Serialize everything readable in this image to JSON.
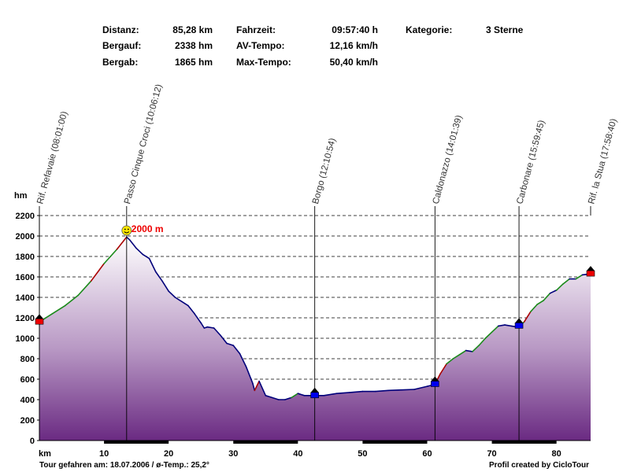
{
  "stats": [
    {
      "label": "Distanz:",
      "value": "85,28 km"
    },
    {
      "label": "Bergauf:",
      "value": "2338 hm"
    },
    {
      "label": "Bergab:",
      "value": "1865 hm"
    },
    {
      "label": "Fahrzeit:",
      "value": "09:57:40 h"
    },
    {
      "label": "AV-Tempo:",
      "value": "12,16 km/h"
    },
    {
      "label": "Max-Tempo:",
      "value": "50,40 km/h"
    },
    {
      "label": "Kategorie:",
      "value": "3 Sterne"
    }
  ],
  "footer": {
    "left": "Tour gefahren am: 18.07.2006  /  ø-Temp.: 25,2°",
    "right": "Profil created by CicloTour"
  },
  "chart_data": {
    "type": "area",
    "xlabel": "km",
    "ylabel": "hm",
    "xlim": [
      0,
      85.28
    ],
    "ylim": [
      0,
      2200
    ],
    "x_ticks": [
      10,
      20,
      30,
      40,
      50,
      60,
      70,
      80
    ],
    "y_ticks": [
      0,
      200,
      400,
      600,
      800,
      1000,
      1200,
      1400,
      1600,
      1800,
      2000,
      2200
    ],
    "grid": true,
    "max_annotation": {
      "x": 13.5,
      "y": 2000,
      "text": "2000 m"
    },
    "waypoints": [
      {
        "x": 0,
        "label": "Rif. Refavaie (08:01:00)"
      },
      {
        "x": 13.5,
        "label": "Passo Cinque Croci (10:06:12)"
      },
      {
        "x": 42.6,
        "label": "Borgo (12:10:54)"
      },
      {
        "x": 61.2,
        "label": "Caldonazzo (14:01:39)"
      },
      {
        "x": 74.2,
        "label": "Carbonare (15:59:45)"
      },
      {
        "x": 85.28,
        "label": "Rif. la Stua (17:58:40)"
      }
    ],
    "series": [
      {
        "values": [
          [
            0,
            1160
          ],
          [
            2,
            1240
          ],
          [
            4,
            1320
          ],
          [
            6,
            1420
          ],
          [
            8,
            1560
          ],
          [
            10,
            1730
          ],
          [
            11,
            1800
          ],
          [
            12,
            1870
          ],
          [
            13,
            1950
          ],
          [
            13.5,
            1990
          ],
          [
            14,
            1960
          ],
          [
            15,
            1880
          ],
          [
            16,
            1820
          ],
          [
            17,
            1780
          ],
          [
            18,
            1650
          ],
          [
            19,
            1560
          ],
          [
            20,
            1460
          ],
          [
            21,
            1400
          ],
          [
            22,
            1360
          ],
          [
            23,
            1320
          ],
          [
            24,
            1240
          ],
          [
            25,
            1150
          ],
          [
            25.5,
            1100
          ],
          [
            26,
            1110
          ],
          [
            27,
            1100
          ],
          [
            28,
            1030
          ],
          [
            29,
            950
          ],
          [
            30,
            930
          ],
          [
            31,
            850
          ],
          [
            32,
            720
          ],
          [
            33,
            560
          ],
          [
            33.3,
            490
          ],
          [
            34,
            580
          ],
          [
            35,
            440
          ],
          [
            36,
            420
          ],
          [
            37,
            400
          ],
          [
            38,
            400
          ],
          [
            39,
            420
          ],
          [
            40,
            460
          ],
          [
            41,
            440
          ],
          [
            42,
            440
          ],
          [
            42.6,
            440
          ],
          [
            44,
            440
          ],
          [
            46,
            460
          ],
          [
            48,
            470
          ],
          [
            50,
            480
          ],
          [
            52,
            480
          ],
          [
            54,
            490
          ],
          [
            56,
            495
          ],
          [
            58,
            500
          ],
          [
            60,
            530
          ],
          [
            61.2,
            550
          ],
          [
            62,
            650
          ],
          [
            63,
            750
          ],
          [
            64,
            800
          ],
          [
            65,
            840
          ],
          [
            66,
            880
          ],
          [
            67,
            870
          ],
          [
            68,
            930
          ],
          [
            69,
            1000
          ],
          [
            70,
            1060
          ],
          [
            71,
            1120
          ],
          [
            72,
            1130
          ],
          [
            73,
            1120
          ],
          [
            74,
            1110
          ],
          [
            75,
            1160
          ],
          [
            76,
            1260
          ],
          [
            77,
            1330
          ],
          [
            78,
            1370
          ],
          [
            79,
            1440
          ],
          [
            80,
            1470
          ],
          [
            81,
            1530
          ],
          [
            82,
            1580
          ],
          [
            83,
            1580
          ],
          [
            84,
            1620
          ],
          [
            85.28,
            1630
          ]
        ]
      }
    ],
    "colors": {
      "climb": "#1a8a1a",
      "flat": "#00007a",
      "steep": "#aa0000",
      "marker_red": "#ee0000",
      "marker_blue": "#0000ee"
    }
  }
}
